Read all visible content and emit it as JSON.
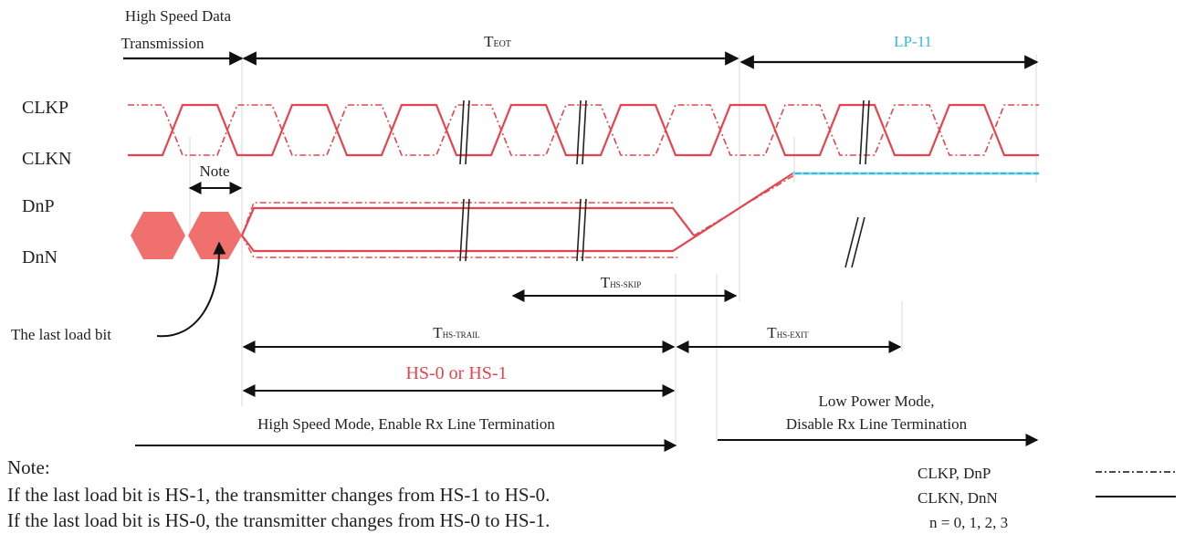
{
  "header": {
    "hs_data_line1": "High Speed Data",
    "hs_data_line2": "Transmission",
    "t_eot_main": "T",
    "t_eot_sub": "EOT",
    "lp11": "LP-11"
  },
  "signals": {
    "clkp": "CLKP",
    "clkn": "CLKN",
    "dnp": "DnP",
    "dnn": "DnN"
  },
  "annotations": {
    "note_label": "Note",
    "last_load_bit": "The last load bit",
    "ths_skip_main": "T",
    "ths_skip_sub": "HS-SKIP",
    "ths_trail_main": "T",
    "ths_trail_sub": "HS-TRAIL",
    "ths_exit_main": "T",
    "ths_exit_sub": "HS-EXIT",
    "hs_state": "HS-0 or HS-1",
    "hs_mode": "High Speed Mode, Enable Rx Line Termination",
    "lp_mode_line1": "Low Power Mode,",
    "lp_mode_line2": "Disable Rx Line Termination"
  },
  "footnote": {
    "title": "Note:",
    "line1": "If the last load bit is HS-1, the transmitter changes from HS-1 to HS-0.",
    "line2": "If the last load bit is HS-0, the transmitter changes from HS-0 to HS-1."
  },
  "legend": {
    "p_label": "CLKP, DnP",
    "n_label": "CLKN, DnN",
    "n_range": "n = 0, 1, 2, 3"
  },
  "colors": {
    "signal": "#e8434c",
    "lp11": "#33bbdd",
    "hex": "#f0706e",
    "arrow": "#111111",
    "guide": "#d9d9d9"
  }
}
